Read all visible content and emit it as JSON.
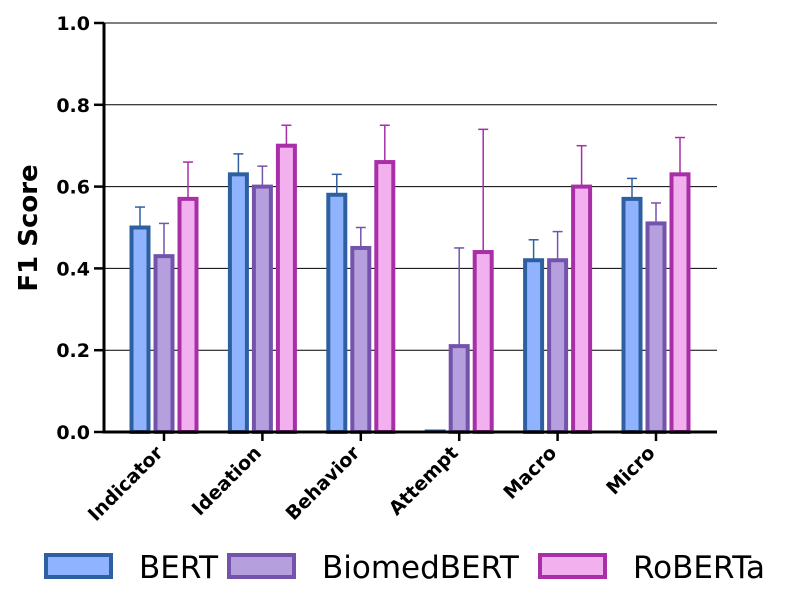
{
  "chart_data": {
    "type": "bar",
    "title": "",
    "xlabel": "",
    "ylabel": "F1 Score",
    "ylim": [
      0.0,
      1.0
    ],
    "yticks": [
      "0.0",
      "0.2",
      "0.4",
      "0.6",
      "0.8",
      "1.0"
    ],
    "grid": "horizontal",
    "legend_position": "bottom",
    "categories": [
      "Indicator",
      "Ideation",
      "Behavior",
      "Attempt",
      "Macro",
      "Micro"
    ],
    "series": [
      {
        "name": "BERT",
        "fill": "#8fb3ff",
        "edge": "#2e5fa0",
        "whisker": "#2e5fa0",
        "values": [
          0.5,
          0.63,
          0.58,
          0.0,
          0.42,
          0.57
        ],
        "err_upper": [
          0.55,
          0.68,
          0.63,
          0.0,
          0.47,
          0.62
        ]
      },
      {
        "name": "BiomedBERT",
        "fill": "#b59fdc",
        "edge": "#7453ad",
        "whisker": "#7453ad",
        "values": [
          0.43,
          0.6,
          0.45,
          0.21,
          0.42,
          0.51
        ],
        "err_upper": [
          0.51,
          0.65,
          0.5,
          0.45,
          0.49,
          0.56
        ]
      },
      {
        "name": "RoBERTa",
        "fill": "#f2b0ee",
        "edge": "#a82fa8",
        "whisker": "#a82fa8",
        "values": [
          0.57,
          0.7,
          0.66,
          0.44,
          0.6,
          0.63
        ],
        "err_upper": [
          0.66,
          0.75,
          0.75,
          0.74,
          0.7,
          0.72
        ]
      }
    ]
  }
}
